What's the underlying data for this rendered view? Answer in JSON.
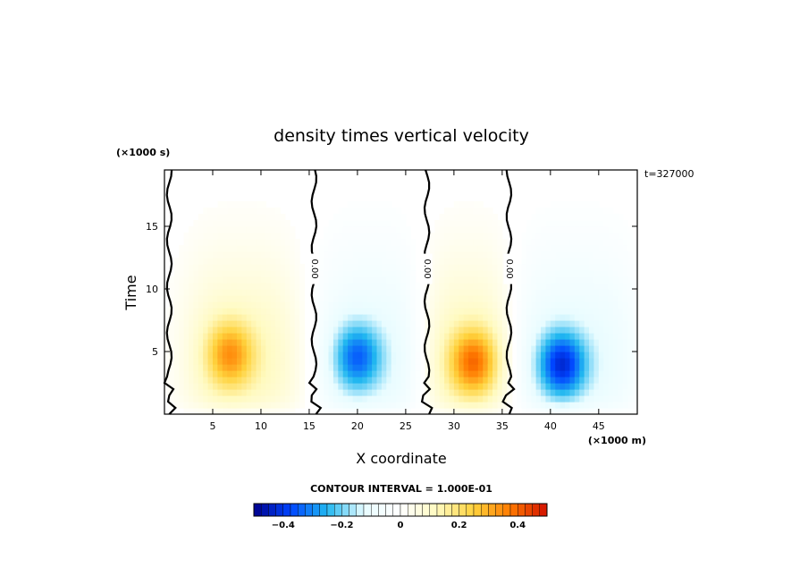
{
  "chart_data": {
    "type": "heatmap",
    "title": "density times vertical velocity",
    "xlabel": "X coordinate",
    "ylabel": "Time",
    "x_unit": "(×1000 m)",
    "y_unit": "(×1000 s)",
    "time_stamp": "t=327000",
    "xlim": [
      0,
      49
    ],
    "ylim": [
      0,
      19.5
    ],
    "x_ticks": [
      5,
      10,
      15,
      20,
      25,
      30,
      35,
      40,
      45
    ],
    "y_ticks": [
      5,
      10,
      15
    ],
    "contour_interval_text": "CONTOUR INTERVAL = 1.000E-01",
    "contour_interval": 0.1,
    "zero_contour_label": "0.00",
    "zero_contour_x": [
      0.5,
      15.5,
      27.2,
      35.7
    ],
    "colorbar": {
      "range": [
        -0.5,
        0.5
      ],
      "ticks": [
        -0.4,
        -0.2,
        0,
        0.2,
        0.4
      ],
      "tick_labels": [
        "−0.4",
        "−0.2",
        "0",
        "0.2",
        "0.4"
      ],
      "colors": [
        "#00008b",
        "#0044ff",
        "#21b7f0",
        "#e8fcff",
        "#ffffff",
        "#fffac0",
        "#ffd23c",
        "#ff7a00",
        "#d21000"
      ]
    },
    "cells": [
      {
        "sign": 1,
        "x_center": 8.0,
        "x_halfwidth": 6.2,
        "peak": 0.27,
        "peak_x": 6.8,
        "peak_t": 4.8
      },
      {
        "sign": -1,
        "x_center": 21.2,
        "x_halfwidth": 5.4,
        "peak": -0.27,
        "peak_x": 20.0,
        "peak_t": 4.6
      },
      {
        "sign": 1,
        "x_center": 31.5,
        "x_halfwidth": 4.8,
        "peak": 0.33,
        "peak_x": 32.0,
        "peak_t": 4.2
      },
      {
        "sign": -1,
        "x_center": 42.5,
        "x_halfwidth": 6.5,
        "peak": -0.36,
        "peak_x": 41.2,
        "peak_t": 4.0
      }
    ]
  }
}
